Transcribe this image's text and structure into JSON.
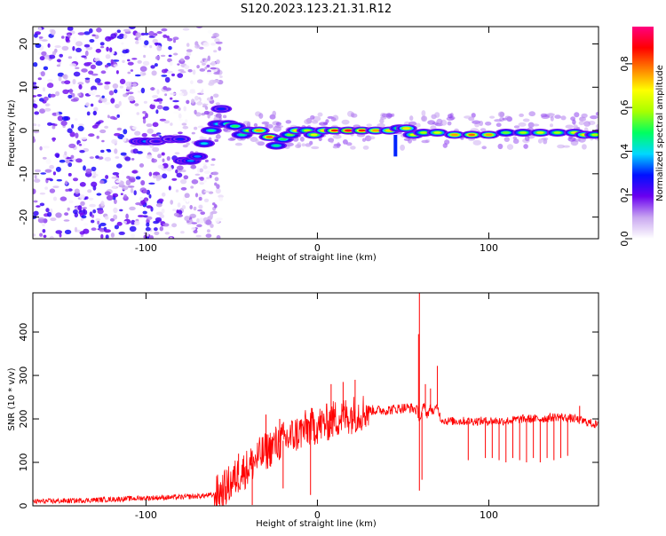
{
  "figure": {
    "title": "S120.2023.123.21.31.R12"
  },
  "chart_data": [
    {
      "type": "heatmap",
      "xlabel": "Height of straight line (km)",
      "ylabel": "Frequency (Hz)",
      "xlim": [
        -166,
        164
      ],
      "ylim": [
        -25,
        24
      ],
      "xticks": [
        -100,
        0,
        100
      ],
      "xtick_labels": [
        "-100",
        "0",
        "100"
      ],
      "yticks": [
        -20,
        -10,
        0,
        10,
        20
      ],
      "ytick_labels": [
        "-20",
        "-10",
        "0",
        "10",
        "20"
      ],
      "grid": false,
      "colorbar": {
        "label": "Normalized spectral amplitude",
        "range": [
          0,
          0.97
        ],
        "ticks": [
          0,
          0.2,
          0.4,
          0.6,
          0.8
        ],
        "tick_labels": [
          "0.0",
          "0.2",
          "0.4",
          "0.6",
          "0.8"
        ],
        "colors": [
          "#ffffff",
          "#c9a7f0",
          "#6a00f0",
          "#0010ff",
          "#00d8ff",
          "#00ff60",
          "#a8ff00",
          "#ffff00",
          "#ff8000",
          "#ff0000",
          "#ff0080"
        ]
      },
      "ridge": [
        {
          "x": -104,
          "y": -2.5,
          "a": 0.3
        },
        {
          "x": -100,
          "y": -2.5,
          "a": 0.35
        },
        {
          "x": -94,
          "y": -2.5,
          "a": 0.25
        },
        {
          "x": -86,
          "y": -2,
          "a": 0.25
        },
        {
          "x": -80,
          "y": -2,
          "a": 0.3
        },
        {
          "x": -78,
          "y": -7,
          "a": 0.3
        },
        {
          "x": -74,
          "y": -7,
          "a": 0.35
        },
        {
          "x": -70,
          "y": -6,
          "a": 0.35
        },
        {
          "x": -66,
          "y": -3,
          "a": 0.4
        },
        {
          "x": -62,
          "y": 0,
          "a": 0.45
        },
        {
          "x": -58,
          "y": 1.5,
          "a": 0.4
        },
        {
          "x": -56,
          "y": 5,
          "a": 0.3
        },
        {
          "x": -52,
          "y": 1.5,
          "a": 0.5
        },
        {
          "x": -48,
          "y": 1,
          "a": 0.5
        },
        {
          "x": -44,
          "y": -1,
          "a": 0.45
        },
        {
          "x": -40,
          "y": 0,
          "a": 0.6
        },
        {
          "x": -34,
          "y": 0,
          "a": 0.75
        },
        {
          "x": -28,
          "y": -1.5,
          "a": 0.8
        },
        {
          "x": -24,
          "y": -3.5,
          "a": 0.45
        },
        {
          "x": -20,
          "y": -2,
          "a": 0.5
        },
        {
          "x": -16,
          "y": -1,
          "a": 0.55
        },
        {
          "x": -12,
          "y": 0,
          "a": 0.7
        },
        {
          "x": -6,
          "y": 0,
          "a": 0.6
        },
        {
          "x": -2,
          "y": -1,
          "a": 0.65
        },
        {
          "x": 4,
          "y": 0,
          "a": 0.7
        },
        {
          "x": 10,
          "y": 0,
          "a": 0.85
        },
        {
          "x": 18,
          "y": 0,
          "a": 0.9
        },
        {
          "x": 26,
          "y": 0,
          "a": 0.85
        },
        {
          "x": 34,
          "y": 0,
          "a": 0.75
        },
        {
          "x": 42,
          "y": 0,
          "a": 0.7
        },
        {
          "x": 48,
          "y": 0.5,
          "a": 0.6
        },
        {
          "x": 52,
          "y": 0.5,
          "a": 0.7
        },
        {
          "x": 56,
          "y": -1,
          "a": 0.65
        },
        {
          "x": 62,
          "y": -0.5,
          "a": 0.6
        },
        {
          "x": 70,
          "y": -0.5,
          "a": 0.65
        },
        {
          "x": 80,
          "y": -1,
          "a": 0.75
        },
        {
          "x": 90,
          "y": -1,
          "a": 0.8
        },
        {
          "x": 100,
          "y": -1,
          "a": 0.75
        },
        {
          "x": 110,
          "y": -0.5,
          "a": 0.55
        },
        {
          "x": 120,
          "y": -0.5,
          "a": 0.6
        },
        {
          "x": 130,
          "y": -0.5,
          "a": 0.65
        },
        {
          "x": 140,
          "y": -0.5,
          "a": 0.6
        },
        {
          "x": 150,
          "y": -0.5,
          "a": 0.65
        },
        {
          "x": 156,
          "y": -1,
          "a": 0.7
        },
        {
          "x": 162,
          "y": -1,
          "a": 0.6
        }
      ]
    },
    {
      "type": "line",
      "xlabel": "Height of straight line (km)",
      "ylabel": "SNR (10 * v/v)",
      "xlim": [
        -166,
        164
      ],
      "ylim": [
        0,
        490
      ],
      "xticks": [
        -100,
        0,
        100
      ],
      "xtick_labels": [
        "-100",
        "0",
        "100"
      ],
      "yticks": [
        0,
        100,
        200,
        300,
        400
      ],
      "ytick_labels": [
        "0",
        "100",
        "200",
        "300",
        "400"
      ],
      "grid": false,
      "series": [
        {
          "color": "#ff0000",
          "x": [
            -166,
            -140,
            -120,
            -100,
            -80,
            -70,
            -60,
            -55,
            -50,
            -45,
            -40,
            -35,
            -30,
            -25,
            -20,
            -15,
            -10,
            -5,
            0,
            5,
            10,
            15,
            20,
            25,
            30,
            40,
            50,
            55,
            58,
            60,
            62,
            64,
            66,
            68,
            70,
            72,
            75,
            80,
            90,
            100,
            110,
            120,
            130,
            140,
            150,
            160,
            164
          ],
          "y": [
            10,
            12,
            15,
            18,
            20,
            22,
            25,
            35,
            55,
            75,
            90,
            110,
            125,
            140,
            150,
            160,
            170,
            180,
            185,
            190,
            200,
            205,
            210,
            215,
            220,
            220,
            225,
            225,
            220,
            200,
            230,
            210,
            225,
            215,
            230,
            200,
            195,
            195,
            195,
            195,
            195,
            200,
            200,
            205,
            200,
            190,
            185
          ]
        }
      ],
      "spikes_up": [
        {
          "x": 59.5,
          "y": 490
        },
        {
          "x": 59,
          "y": 395
        },
        {
          "x": 70,
          "y": 322
        },
        {
          "x": 63,
          "y": 280
        },
        {
          "x": 66,
          "y": 270
        },
        {
          "x": 22,
          "y": 290
        },
        {
          "x": 15,
          "y": 285
        },
        {
          "x": 8,
          "y": 280
        },
        {
          "x": -22,
          "y": 200
        },
        {
          "x": -30,
          "y": 210
        },
        {
          "x": -46,
          "y": 120
        },
        {
          "x": 153,
          "y": 230
        }
      ],
      "spikes_down": [
        {
          "x": 59.5,
          "y": 35
        },
        {
          "x": 61,
          "y": 60
        },
        {
          "x": 88,
          "y": 105
        },
        {
          "x": 98,
          "y": 110
        },
        {
          "x": 102,
          "y": 110
        },
        {
          "x": 106,
          "y": 105
        },
        {
          "x": 110,
          "y": 100
        },
        {
          "x": 114,
          "y": 110
        },
        {
          "x": 118,
          "y": 105
        },
        {
          "x": 122,
          "y": 100
        },
        {
          "x": 126,
          "y": 110
        },
        {
          "x": 130,
          "y": 100
        },
        {
          "x": 134,
          "y": 110
        },
        {
          "x": 138,
          "y": 105
        },
        {
          "x": 142,
          "y": 110
        },
        {
          "x": 146,
          "y": 115
        },
        {
          "x": -4,
          "y": 25
        },
        {
          "x": -20,
          "y": 40
        },
        {
          "x": -38,
          "y": 2
        }
      ]
    }
  ]
}
